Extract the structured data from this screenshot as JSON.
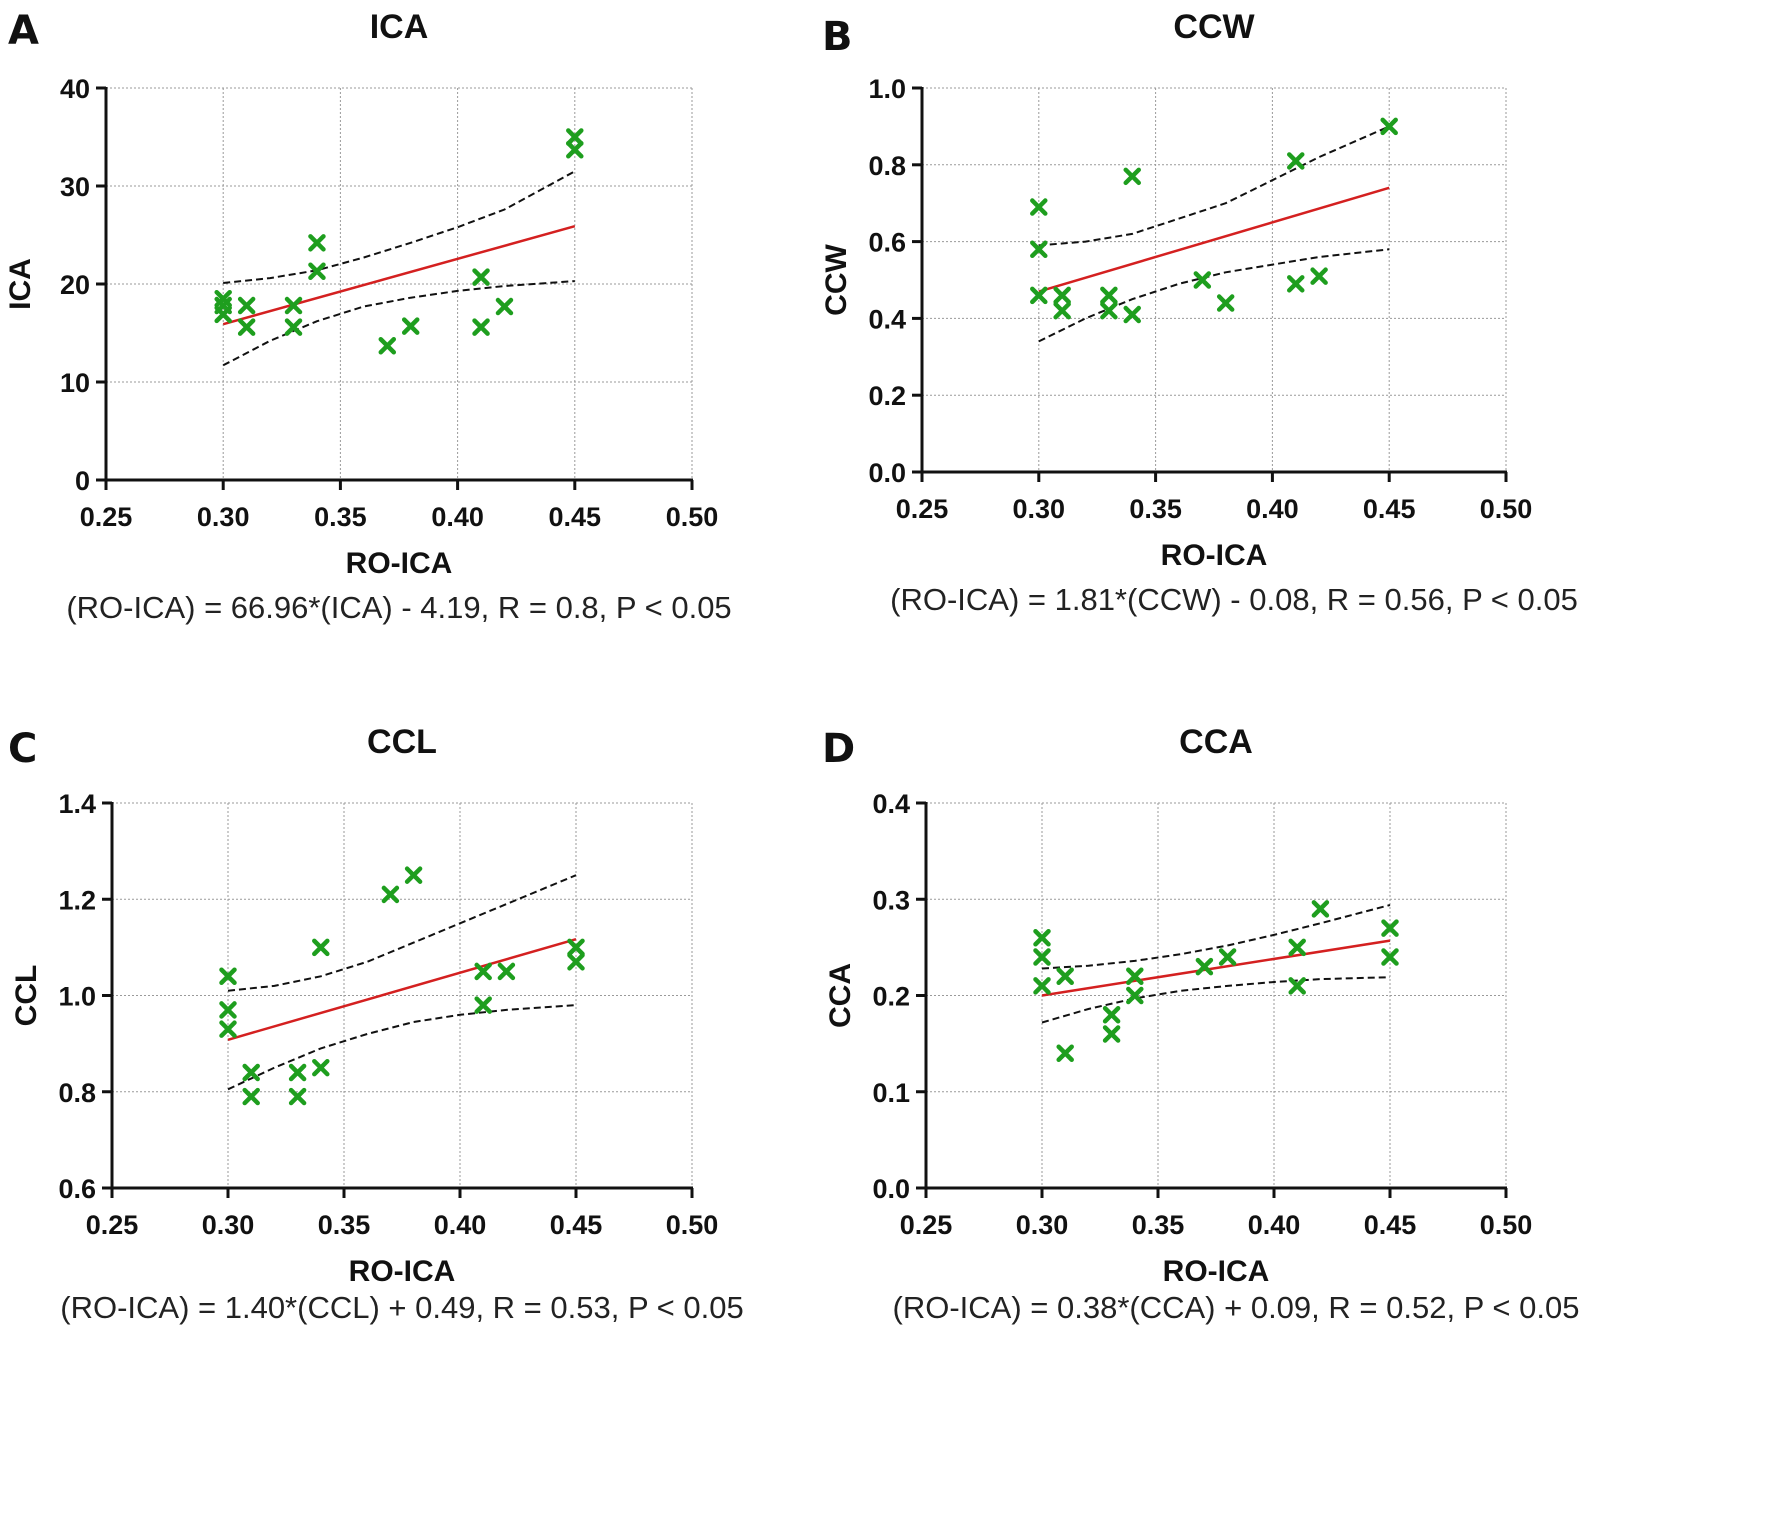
{
  "figure": {
    "marker_color": "#1e9e1e",
    "fit_color": "#d42020",
    "ci_color": "#111111"
  },
  "chart_data": [
    {
      "panel": "A",
      "type": "scatter",
      "title": "ICA",
      "xlabel": "RO-ICA",
      "ylabel": "ICA",
      "xlim": [
        0.25,
        0.5
      ],
      "ylim": [
        0,
        40
      ],
      "xticks": [
        "0.25",
        "0.30",
        "0.35",
        "0.40",
        "0.45",
        "0.50"
      ],
      "yticks": [
        "0",
        "10",
        "20",
        "30",
        "40"
      ],
      "grid": true,
      "points": [
        [
          0.3,
          18.5
        ],
        [
          0.3,
          17.8
        ],
        [
          0.3,
          16.9
        ],
        [
          0.31,
          17.8
        ],
        [
          0.31,
          15.6
        ],
        [
          0.33,
          17.8
        ],
        [
          0.33,
          15.6
        ],
        [
          0.34,
          24.2
        ],
        [
          0.34,
          21.3
        ],
        [
          0.37,
          13.7
        ],
        [
          0.38,
          15.7
        ],
        [
          0.41,
          20.7
        ],
        [
          0.41,
          15.6
        ],
        [
          0.42,
          17.7
        ],
        [
          0.45,
          35.0
        ],
        [
          0.45,
          33.7
        ]
      ],
      "fit": [
        [
          0.3,
          15.9
        ],
        [
          0.45,
          25.9
        ]
      ],
      "ci_upper": [
        [
          0.3,
          20.1
        ],
        [
          0.32,
          20.6
        ],
        [
          0.34,
          21.4
        ],
        [
          0.36,
          22.7
        ],
        [
          0.38,
          24.2
        ],
        [
          0.4,
          25.8
        ],
        [
          0.42,
          27.6
        ],
        [
          0.45,
          31.5
        ]
      ],
      "ci_lower": [
        [
          0.3,
          11.7
        ],
        [
          0.32,
          14.2
        ],
        [
          0.34,
          16.2
        ],
        [
          0.36,
          17.7
        ],
        [
          0.38,
          18.6
        ],
        [
          0.4,
          19.3
        ],
        [
          0.42,
          19.8
        ],
        [
          0.45,
          20.3
        ]
      ],
      "equation": "(RO-ICA) = 66.96*(ICA) - 4.19, R = 0.8, P < 0.05"
    },
    {
      "panel": "B",
      "type": "scatter",
      "title": "CCW",
      "xlabel": "RO-ICA",
      "ylabel": "CCW",
      "xlim": [
        0.25,
        0.5
      ],
      "ylim": [
        0.0,
        1.0
      ],
      "xticks": [
        "0.25",
        "0.30",
        "0.35",
        "0.40",
        "0.45",
        "0.50"
      ],
      "yticks": [
        "0.0",
        "0.2",
        "0.4",
        "0.6",
        "0.8",
        "1.0"
      ],
      "grid": true,
      "points": [
        [
          0.3,
          0.69
        ],
        [
          0.3,
          0.58
        ],
        [
          0.3,
          0.46
        ],
        [
          0.31,
          0.46
        ],
        [
          0.31,
          0.42
        ],
        [
          0.33,
          0.46
        ],
        [
          0.33,
          0.42
        ],
        [
          0.34,
          0.77
        ],
        [
          0.34,
          0.41
        ],
        [
          0.37,
          0.5
        ],
        [
          0.38,
          0.44
        ],
        [
          0.41,
          0.81
        ],
        [
          0.41,
          0.49
        ],
        [
          0.42,
          0.51
        ],
        [
          0.45,
          0.9
        ]
      ],
      "fit": [
        [
          0.3,
          0.47
        ],
        [
          0.45,
          0.74
        ]
      ],
      "ci_upper": [
        [
          0.3,
          0.59
        ],
        [
          0.32,
          0.6
        ],
        [
          0.34,
          0.62
        ],
        [
          0.36,
          0.66
        ],
        [
          0.38,
          0.7
        ],
        [
          0.4,
          0.76
        ],
        [
          0.42,
          0.82
        ],
        [
          0.45,
          0.9
        ]
      ],
      "ci_lower": [
        [
          0.3,
          0.34
        ],
        [
          0.32,
          0.4
        ],
        [
          0.34,
          0.45
        ],
        [
          0.36,
          0.49
        ],
        [
          0.38,
          0.52
        ],
        [
          0.4,
          0.54
        ],
        [
          0.42,
          0.56
        ],
        [
          0.45,
          0.58
        ]
      ],
      "equation": "(RO-ICA) = 1.81*(CCW) - 0.08, R = 0.56, P < 0.05"
    },
    {
      "panel": "C",
      "type": "scatter",
      "title": "CCL",
      "xlabel": "RO-ICA",
      "ylabel": "CCL",
      "xlim": [
        0.25,
        0.5
      ],
      "ylim": [
        0.6,
        1.4
      ],
      "xticks": [
        "0.25",
        "0.30",
        "0.35",
        "0.40",
        "0.45",
        "0.50"
      ],
      "yticks": [
        "0.6",
        "0.8",
        "1.0",
        "1.2",
        "1.4"
      ],
      "grid": true,
      "points": [
        [
          0.3,
          1.04
        ],
        [
          0.3,
          0.97
        ],
        [
          0.3,
          0.93
        ],
        [
          0.31,
          0.84
        ],
        [
          0.31,
          0.79
        ],
        [
          0.33,
          0.84
        ],
        [
          0.33,
          0.79
        ],
        [
          0.34,
          1.1
        ],
        [
          0.34,
          0.85
        ],
        [
          0.37,
          1.21
        ],
        [
          0.38,
          1.25
        ],
        [
          0.41,
          1.05
        ],
        [
          0.41,
          0.98
        ],
        [
          0.42,
          1.05
        ],
        [
          0.45,
          1.1
        ],
        [
          0.45,
          1.07
        ]
      ],
      "fit": [
        [
          0.3,
          0.908
        ],
        [
          0.45,
          1.117
        ]
      ],
      "ci_upper": [
        [
          0.3,
          1.01
        ],
        [
          0.32,
          1.02
        ],
        [
          0.34,
          1.04
        ],
        [
          0.36,
          1.07
        ],
        [
          0.38,
          1.11
        ],
        [
          0.4,
          1.15
        ],
        [
          0.42,
          1.19
        ],
        [
          0.45,
          1.25
        ]
      ],
      "ci_lower": [
        [
          0.3,
          0.805
        ],
        [
          0.32,
          0.85
        ],
        [
          0.34,
          0.89
        ],
        [
          0.36,
          0.92
        ],
        [
          0.38,
          0.945
        ],
        [
          0.4,
          0.96
        ],
        [
          0.42,
          0.97
        ],
        [
          0.45,
          0.98
        ]
      ],
      "equation": "(RO-ICA) = 1.40*(CCL) + 0.49, R = 0.53, P < 0.05"
    },
    {
      "panel": "D",
      "type": "scatter",
      "title": "CCA",
      "xlabel": "RO-ICA",
      "ylabel": "CCA",
      "xlim": [
        0.25,
        0.5
      ],
      "ylim": [
        0.0,
        0.4
      ],
      "xticks": [
        "0.25",
        "0.30",
        "0.35",
        "0.40",
        "0.45",
        "0.50"
      ],
      "yticks": [
        "0.0",
        "0.1",
        "0.2",
        "0.3",
        "0.4"
      ],
      "grid": true,
      "points": [
        [
          0.3,
          0.26
        ],
        [
          0.3,
          0.24
        ],
        [
          0.3,
          0.21
        ],
        [
          0.31,
          0.22
        ],
        [
          0.31,
          0.14
        ],
        [
          0.33,
          0.18
        ],
        [
          0.33,
          0.16
        ],
        [
          0.34,
          0.22
        ],
        [
          0.34,
          0.2
        ],
        [
          0.37,
          0.23
        ],
        [
          0.38,
          0.24
        ],
        [
          0.41,
          0.25
        ],
        [
          0.41,
          0.21
        ],
        [
          0.42,
          0.29
        ],
        [
          0.45,
          0.27
        ],
        [
          0.45,
          0.24
        ]
      ],
      "fit": [
        [
          0.3,
          0.2
        ],
        [
          0.45,
          0.257
        ]
      ],
      "ci_upper": [
        [
          0.3,
          0.228
        ],
        [
          0.32,
          0.231
        ],
        [
          0.34,
          0.236
        ],
        [
          0.36,
          0.243
        ],
        [
          0.38,
          0.252
        ],
        [
          0.4,
          0.263
        ],
        [
          0.42,
          0.275
        ],
        [
          0.45,
          0.294
        ]
      ],
      "ci_lower": [
        [
          0.3,
          0.172
        ],
        [
          0.32,
          0.186
        ],
        [
          0.34,
          0.197
        ],
        [
          0.36,
          0.205
        ],
        [
          0.38,
          0.21
        ],
        [
          0.4,
          0.214
        ],
        [
          0.42,
          0.217
        ],
        [
          0.45,
          0.219
        ]
      ],
      "equation": "(RO-ICA) = 0.38*(CCA) + 0.09, R = 0.52, P < 0.05"
    }
  ]
}
